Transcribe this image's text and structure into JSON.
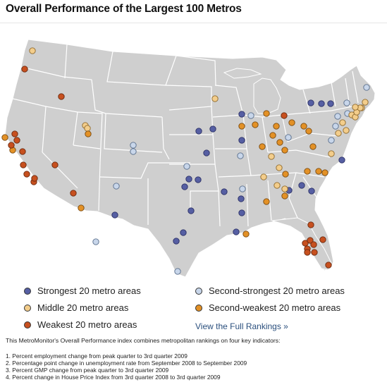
{
  "title": "Overall Performance of the Largest 100 Metros",
  "colors": {
    "strongest": "#565fa3",
    "second_strongest": "#c8d6ea",
    "middle": "#f3cd8b",
    "second_weakest": "#e39126",
    "weakest": "#c7501f",
    "land": "#cfcfcf",
    "state_border": "#ffffff"
  },
  "legend": {
    "strongest": "Strongest 20 metro areas",
    "second_strongest": "Second-strongest 20 metro areas",
    "middle": "Middle 20 metro areas",
    "second_weakest": "Second-weakest 20 metro areas",
    "weakest": "Weakest 20 metro areas"
  },
  "full_rankings_link": "View the Full Rankings »",
  "description": "This MetroMonitor's Overall Performance index combines metropolitan rankings on four key indicators:",
  "indicators": [
    "1. Percent employment change from peak quarter to 3rd quarter 2009",
    "2. Percentage point change in unemployment rate from September 2008 to September 2009",
    "3. Percent GMP change from peak quarter to 3rd quarter 2009",
    "4. Percent change in House Price Index from 3rd quarter 2008 to 3rd quarter 2009"
  ]
}
